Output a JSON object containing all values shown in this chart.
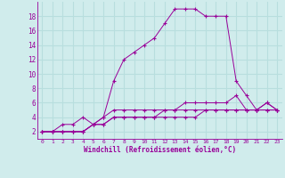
{
  "xlabel": "Windchill (Refroidissement éolien,°C)",
  "background_color": "#d0ecec",
  "grid_color": "#b8dede",
  "line_color": "#990099",
  "line1_x": [
    0,
    1,
    2,
    3,
    4,
    5,
    6,
    7,
    8,
    9,
    10,
    11,
    12,
    13,
    14,
    15,
    16,
    17,
    18,
    19,
    20,
    21,
    22,
    23
  ],
  "line1_y": [
    2,
    2,
    3,
    3,
    4,
    3,
    4,
    9,
    12,
    13,
    14,
    15,
    17,
    19,
    19,
    19,
    18,
    18,
    18,
    9,
    7,
    5,
    6,
    5
  ],
  "line2_x": [
    0,
    1,
    2,
    3,
    4,
    5,
    6,
    7,
    8,
    9,
    10,
    11,
    12,
    13,
    14,
    15,
    16,
    17,
    18,
    19,
    20,
    21,
    22,
    23
  ],
  "line2_y": [
    2,
    2,
    2,
    2,
    2,
    3,
    4,
    5,
    5,
    5,
    5,
    5,
    5,
    5,
    6,
    6,
    6,
    6,
    6,
    7,
    5,
    5,
    6,
    5
  ],
  "line3_x": [
    0,
    1,
    2,
    3,
    4,
    5,
    6,
    7,
    8,
    9,
    10,
    11,
    12,
    13,
    14,
    15,
    16,
    17,
    18,
    19,
    20,
    21,
    22,
    23
  ],
  "line3_y": [
    2,
    2,
    2,
    2,
    2,
    3,
    3,
    4,
    4,
    4,
    4,
    4,
    5,
    5,
    5,
    5,
    5,
    5,
    5,
    5,
    5,
    5,
    5,
    5
  ],
  "line4_x": [
    0,
    1,
    2,
    3,
    4,
    5,
    6,
    7,
    8,
    9,
    10,
    11,
    12,
    13,
    14,
    15,
    16,
    17,
    18,
    19,
    20,
    21,
    22,
    23
  ],
  "line4_y": [
    2,
    2,
    2,
    2,
    2,
    3,
    3,
    4,
    4,
    4,
    4,
    4,
    4,
    4,
    4,
    4,
    5,
    5,
    5,
    5,
    5,
    5,
    5,
    5
  ],
  "xlim": [
    -0.5,
    23.5
  ],
  "ylim": [
    1,
    20
  ],
  "yticks": [
    2,
    4,
    6,
    8,
    10,
    12,
    14,
    16,
    18
  ],
  "xticks": [
    0,
    1,
    2,
    3,
    4,
    5,
    6,
    7,
    8,
    9,
    10,
    11,
    12,
    13,
    14,
    15,
    16,
    17,
    18,
    19,
    20,
    21,
    22,
    23
  ]
}
